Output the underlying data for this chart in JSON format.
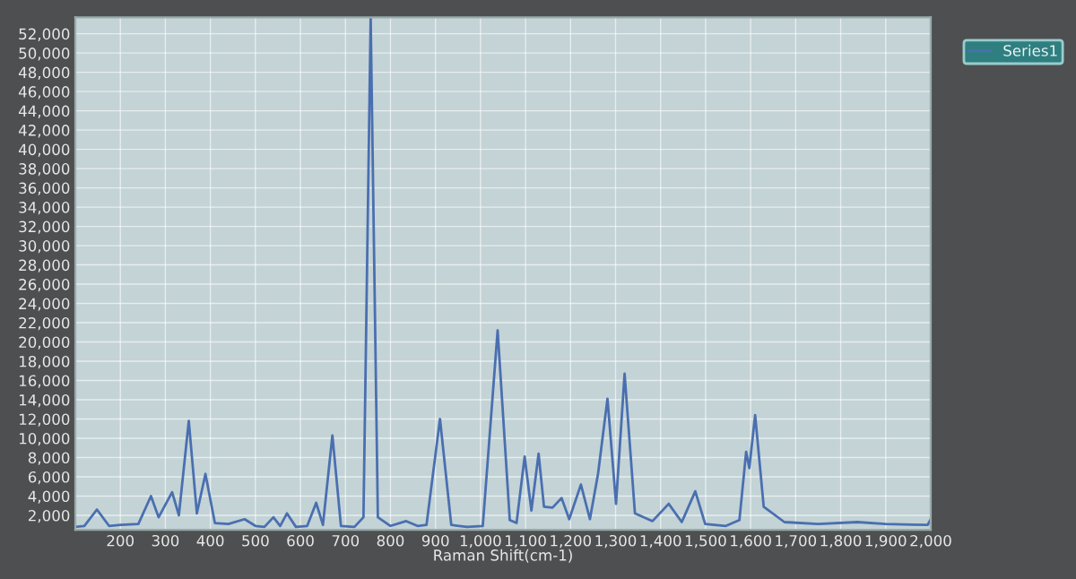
{
  "chart_data": {
    "type": "line",
    "xlabel": "Raman Shift(cm-1)",
    "x": [
      100,
      120,
      148,
      175,
      200,
      240,
      268,
      285,
      315,
      330,
      352,
      370,
      389,
      410,
      440,
      476,
      500,
      520,
      540,
      555,
      570,
      590,
      615,
      635,
      650,
      671,
      690,
      720,
      740,
      756,
      772,
      800,
      835,
      860,
      880,
      910,
      935,
      970,
      1005,
      1038,
      1065,
      1080,
      1098,
      1113,
      1129,
      1141,
      1160,
      1180,
      1197,
      1223,
      1243,
      1261,
      1282,
      1301,
      1320,
      1343,
      1382,
      1418,
      1447,
      1477,
      1499,
      1545,
      1575,
      1590,
      1597,
      1610,
      1629,
      1675,
      1750,
      1837,
      1900,
      1993,
      2000
    ],
    "series": [
      {
        "name": "Series1",
        "color": "#4a6fb0",
        "values": [
          800,
          900,
          2600,
          900,
          1000,
          1100,
          4000,
          1800,
          4400,
          2000,
          11800,
          2200,
          6300,
          1200,
          1100,
          1600,
          900,
          800,
          1800,
          900,
          2200,
          800,
          900,
          3300,
          1000,
          10300,
          900,
          800,
          1800,
          53700,
          1800,
          900,
          1400,
          900,
          1000,
          12000,
          1000,
          800,
          900,
          21200,
          1500,
          1200,
          8100,
          2500,
          8400,
          2900,
          2800,
          3800,
          1600,
          5200,
          1600,
          6300,
          14100,
          3200,
          16700,
          2200,
          1400,
          3200,
          1300,
          4500,
          1100,
          900,
          1500,
          8600,
          6900,
          12400,
          2900,
          1300,
          1100,
          1300,
          1100,
          1000,
          1600
        ]
      }
    ],
    "xlim": [
      100,
      2000
    ],
    "xticks": [
      200,
      300,
      400,
      500,
      600,
      700,
      800,
      900,
      {
        "value": 1000,
        "label": "1,000"
      },
      {
        "value": 1100,
        "label": "1,100"
      },
      {
        "value": 1200,
        "label": "1,200"
      },
      {
        "value": 1300,
        "label": "1,300"
      },
      {
        "value": 1400,
        "label": "1,400"
      },
      {
        "value": 1500,
        "label": "1,500"
      },
      {
        "value": 1600,
        "label": "1,600"
      },
      {
        "value": 1700,
        "label": "1,700"
      },
      {
        "value": 1800,
        "label": "1,800"
      },
      {
        "value": 1900,
        "label": "1,900"
      },
      {
        "value": 2000,
        "label": "2,000"
      }
    ],
    "ylim": [
      500,
      53700
    ],
    "yticks": [
      {
        "value": 2000,
        "label": "2,000"
      },
      {
        "value": 4000,
        "label": "4,000"
      },
      {
        "value": 6000,
        "label": "6,000"
      },
      {
        "value": 8000,
        "label": "8,000"
      },
      {
        "value": 10000,
        "label": "10,000"
      },
      {
        "value": 12000,
        "label": "12,000"
      },
      {
        "value": 14000,
        "label": "14,000"
      },
      {
        "value": 16000,
        "label": "16,000"
      },
      {
        "value": 18000,
        "label": "18,000"
      },
      {
        "value": 20000,
        "label": "20,000"
      },
      {
        "value": 22000,
        "label": "22,000"
      },
      {
        "value": 24000,
        "label": "24,000"
      },
      {
        "value": 26000,
        "label": "26,000"
      },
      {
        "value": 28000,
        "label": "28,000"
      },
      {
        "value": 30000,
        "label": "30,000"
      },
      {
        "value": 32000,
        "label": "32,000"
      },
      {
        "value": 34000,
        "label": "34,000"
      },
      {
        "value": 36000,
        "label": "36,000"
      },
      {
        "value": 38000,
        "label": "38,000"
      },
      {
        "value": 40000,
        "label": "40,000"
      },
      {
        "value": 42000,
        "label": "42,000"
      },
      {
        "value": 44000,
        "label": "44,000"
      },
      {
        "value": 46000,
        "label": "46,000"
      },
      {
        "value": 48000,
        "label": "48,000"
      },
      {
        "value": 50000,
        "label": "50,000"
      },
      {
        "value": 52000,
        "label": "52,000"
      }
    ],
    "grid": true,
    "legend": "top right",
    "marker": "none",
    "line_style": "solid"
  }
}
